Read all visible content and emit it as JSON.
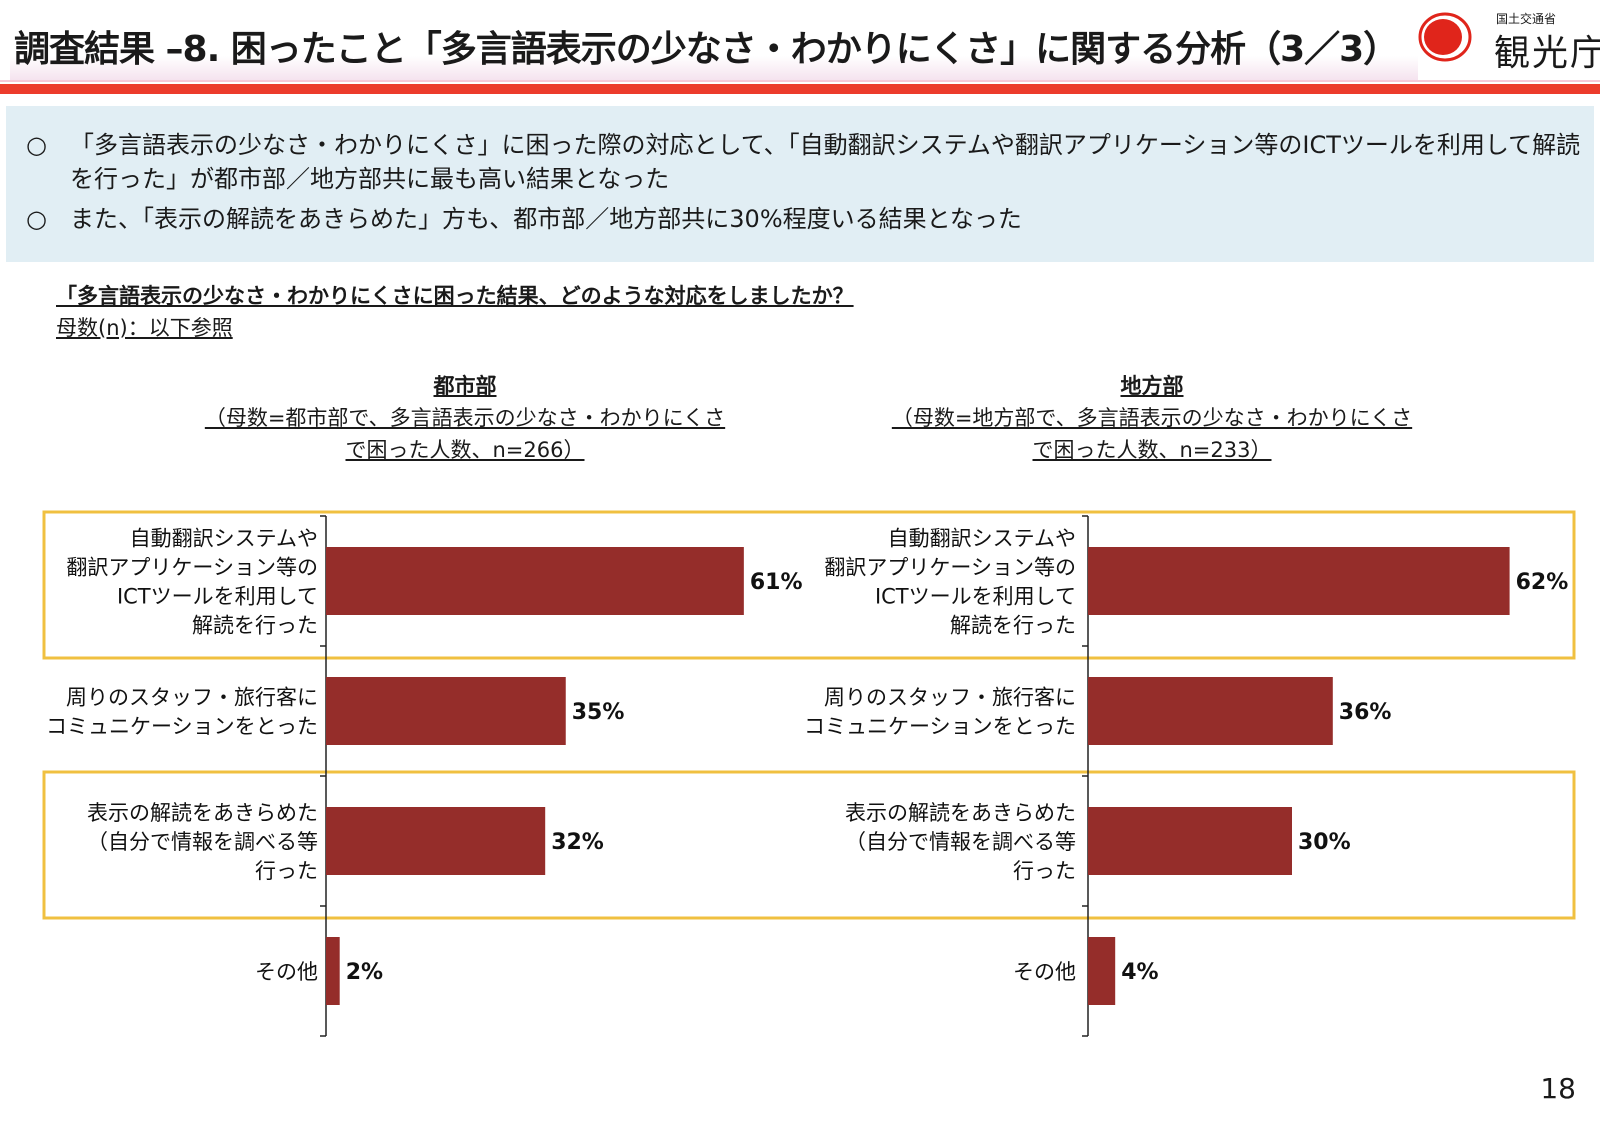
{
  "header": {
    "title": "調査結果 –8. 困ったこと「多言語表示の少なさ・わかりにくさ」に関する分析（3／3）",
    "logo_ministry": "国土交通省",
    "logo_agency": "観光庁"
  },
  "summary": {
    "bullet_mark": "○",
    "bullets": [
      "「多言語表示の少なさ・わかりにくさ」に困った際の対応として、「自動翻訳システムや翻訳アプリケーション等のICTツールを利用して解読",
      "を行った」が都市部／地方部共に最も高い結果となった",
      "また、「表示の解読をあきらめた」方も、都市部／地方部共に30%程度いる結果となった"
    ]
  },
  "question": "「多言語表示の少なさ・わかりにくさに困った結果、どのような対応をしましたか？",
  "sample_note": "母数(n)：以下参照",
  "page_number": "18",
  "colors": {
    "bar": "#952d2a",
    "highlight_border": "#f0c040",
    "title_bar": "#ec3b2c",
    "logo_red": "#e0251b"
  },
  "chart_data": [
    {
      "type": "bar",
      "orientation": "horizontal",
      "title": "都市部",
      "subtitle_lines": [
        "（母数=都市部で、多言語表示の少なさ・わかりにくさ",
        "で困った人数、n=266）"
      ],
      "categories": [
        [
          "自動翻訳システムや",
          "翻訳アプリケーション等の",
          "ICTツールを利用して",
          "解読を行った"
        ],
        [
          "周りのスタッフ・旅行客に",
          "コミュニケーションをとった"
        ],
        [
          "表示の解読をあきらめた",
          "（自分で情報を調べる等",
          "行った"
        ],
        [
          "その他"
        ]
      ],
      "values": [
        61,
        35,
        32,
        2
      ],
      "value_labels": [
        "61%",
        "35%",
        "32%",
        "2%"
      ],
      "highlighted": [
        true,
        false,
        true,
        false
      ],
      "xlim": [
        0,
        100
      ],
      "grid": false
    },
    {
      "type": "bar",
      "orientation": "horizontal",
      "title": "地方部",
      "subtitle_lines": [
        "（母数=地方部で、多言語表示の少なさ・わかりにくさ",
        "で困った人数、n=233）"
      ],
      "categories": [
        [
          "自動翻訳システムや",
          "翻訳アプリケーション等の",
          "ICTツールを利用して",
          "解読を行った"
        ],
        [
          "周りのスタッフ・旅行客に",
          "コミュニケーションをとった"
        ],
        [
          "表示の解読をあきらめた",
          "（自分で情報を調べる等",
          "行った"
        ],
        [
          "その他"
        ]
      ],
      "values": [
        62,
        36,
        30,
        4
      ],
      "value_labels": [
        "62%",
        "36%",
        "30%",
        "4%"
      ],
      "highlighted": [
        true,
        false,
        true,
        false
      ],
      "xlim": [
        0,
        100
      ],
      "grid": false
    }
  ]
}
